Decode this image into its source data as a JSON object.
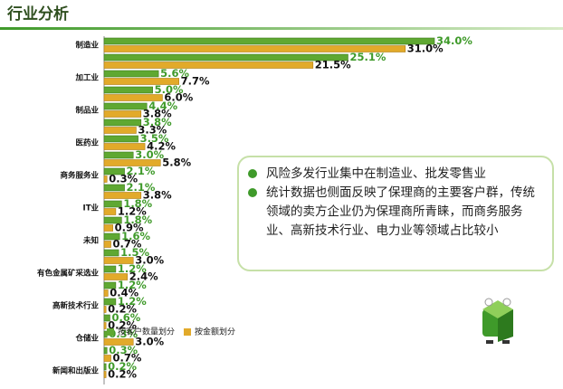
{
  "header": {
    "title": "行业分析"
  },
  "chart_data": {
    "type": "bar",
    "orientation": "horizontal",
    "categories": [
      "制造业",
      null,
      "加工业",
      null,
      "制品业",
      null,
      "医药业",
      null,
      "商务服务业",
      null,
      "IT业",
      null,
      "未知",
      null,
      "有色金属矿采选业",
      null,
      "高新技术行业",
      null,
      "仓储业",
      null,
      "新闻和出版业"
    ],
    "xlim": [
      0,
      34
    ],
    "legend": "bottom-left",
    "series": [
      {
        "name": "按客户数量划分",
        "color": "#5fa832",
        "values": [
          34.0,
          25.1,
          5.6,
          5.0,
          4.4,
          3.8,
          3.5,
          3.0,
          2.1,
          2.1,
          1.8,
          1.8,
          1.6,
          1.5,
          1.2,
          1.2,
          1.2,
          0.6,
          0.3,
          0.3,
          0.2
        ],
        "value_labels": [
          "34.0%",
          "25.1%",
          "5.6%",
          "5.0%",
          "4.4%",
          "3.8%",
          "3.5%",
          "3.0%",
          "2.1%",
          "2.1%",
          "1.8%",
          "1.8%",
          "1.6%",
          "1.5%",
          "1.2%",
          "1.2%",
          "1.2%",
          "0.6%",
          "0.3%",
          "0.3%",
          "0.2%"
        ]
      },
      {
        "name": "按金额划分",
        "color": "#e2aa2a",
        "values": [
          31.0,
          21.5,
          7.7,
          6.0,
          3.8,
          3.3,
          4.2,
          5.8,
          0.3,
          3.8,
          1.2,
          0.9,
          0.7,
          3.0,
          2.4,
          0.4,
          0.2,
          0.2,
          3.0,
          0.7,
          0.2
        ],
        "value_labels": [
          "31.0%",
          "21.5%",
          "7.7%",
          "6.0%",
          "3.8%",
          "3.3%",
          "4.2%",
          "5.8%",
          "0.3%",
          "3.8%",
          "1.2%",
          "0.9%",
          "0.7%",
          "3.0%",
          "2.4%",
          "0.4%",
          "0.2%",
          "0.2%",
          "3.0%",
          "0.7%",
          "0.2%"
        ]
      }
    ]
  },
  "notes": {
    "bullets": [
      "风险多发行业集中在制造业、批发零售业",
      "统计数据也侧面反映了保理商的主要客户群，传统领域的卖方企业仍为保理商所青睐，而商务服务业、高新技术行业、电力业等领域占比较小"
    ]
  }
}
